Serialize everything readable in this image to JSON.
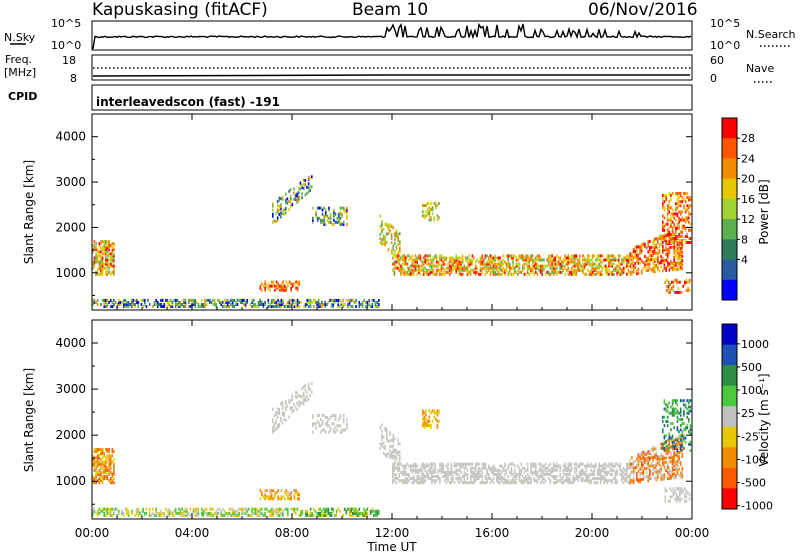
{
  "header": {
    "station": "Kapuskasing (fitACF)",
    "beam": "Beam 10",
    "date": "06/Nov/2016"
  },
  "top_panels": {
    "nsky_label": "N.Sky",
    "nsky_ticks": [
      "10^5",
      "10^0"
    ],
    "nsearch_label": "N.Search",
    "nsearch_ticks": [
      "10^5",
      "10^0"
    ],
    "freq_label": "Freq.",
    "freq_unit": "[MHz]",
    "freq_ticks": [
      "18",
      "8"
    ],
    "nave_label": "Nave",
    "nave_ticks": [
      "60",
      "0"
    ],
    "cpid_label": "CPID",
    "cpid_text": "interleavedscon (fast) -191"
  },
  "chart_data": [
    {
      "type": "heatmap",
      "name": "power-panel",
      "ylabel": "Slant Range [km]",
      "y_ticks": [
        "4000",
        "3000",
        "2000",
        "1000"
      ],
      "ylim": [
        180,
        4500
      ],
      "xlim_hours": [
        0,
        24
      ],
      "colorbar_label": "Power [dB]",
      "colorbar_ticks": [
        "28",
        "24",
        "20",
        "16",
        "12",
        "8",
        "4"
      ],
      "colorbar_colors": [
        "#ff0000",
        "#ff5500",
        "#f08c00",
        "#e6c800",
        "#a0d232",
        "#5aaf50",
        "#2e7d5a",
        "#2a5aa0",
        "#0000ff"
      ],
      "colorbar_range": [
        0,
        32
      ]
    },
    {
      "type": "heatmap",
      "name": "velocity-panel",
      "ylabel": "Slant Range [km]",
      "y_ticks": [
        "4000",
        "3000",
        "2000",
        "1000"
      ],
      "ylim": [
        180,
        4500
      ],
      "xlim_hours": [
        0,
        24
      ],
      "colorbar_label": "Velocity [m s⁻¹]",
      "colorbar_ticks": [
        "1000",
        "500",
        "100",
        "25",
        "-25",
        "-100",
        "-500",
        "-1000"
      ],
      "colorbar_colors": [
        "#0000c8",
        "#1e50b4",
        "#2d8c46",
        "#4bc83c",
        "#c0c0c0",
        "#e6c800",
        "#f08c00",
        "#ff5a00",
        "#ff0000"
      ]
    }
  ],
  "x_axis": {
    "ticks": [
      "00:00",
      "04:00",
      "08:00",
      "12:00",
      "16:00",
      "20:00",
      "00:00"
    ],
    "label": "Time UT"
  }
}
